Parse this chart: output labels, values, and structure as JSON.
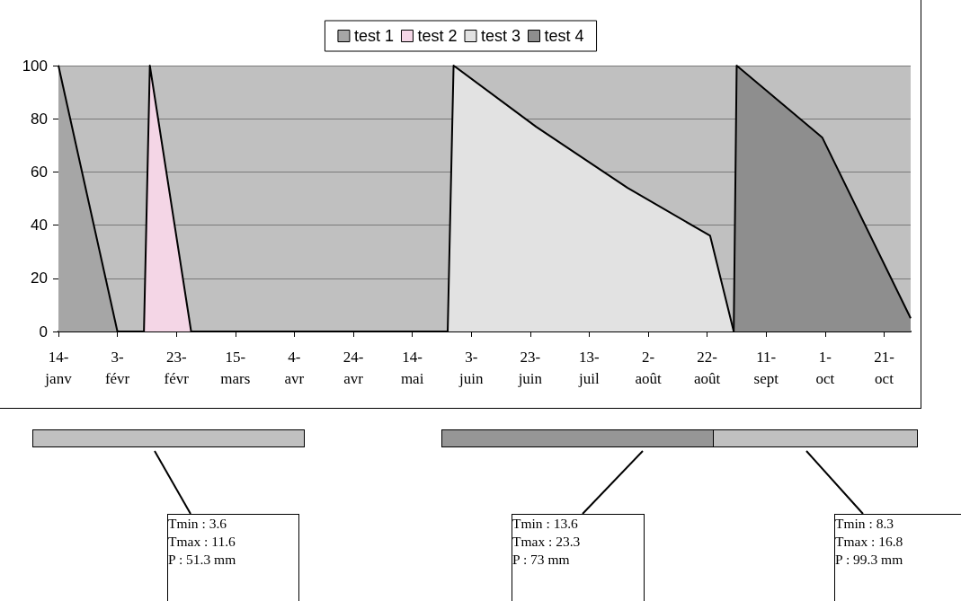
{
  "chart_data": {
    "type": "area",
    "series": [
      {
        "name": "test 1",
        "color": "#a6a6a6",
        "x": [
          "--01-14",
          "--02-03"
        ],
        "values": [
          100,
          0
        ]
      },
      {
        "name": "test 2",
        "color": "#f4d6e6",
        "x": [
          "--02-12",
          "--02-14",
          "--02-28"
        ],
        "values": [
          0,
          100,
          0
        ]
      },
      {
        "name": "test 3",
        "color": "#e2e2e2",
        "x": [
          "--05-26",
          "--05-28",
          "--06-25",
          "--07-26",
          "--08-23",
          "--08-31"
        ],
        "values": [
          0,
          100,
          77,
          54,
          36,
          0
        ]
      },
      {
        "name": "test 4",
        "color": "#8e8e8e",
        "x": [
          "--08-31",
          "--09-01",
          "--09-30",
          "--10-30"
        ],
        "values": [
          0,
          100,
          73,
          5
        ]
      }
    ],
    "xlim": [
      "--01-14",
      "--10-30"
    ],
    "xticks": [
      {
        "value": "--01-14",
        "label": "14-janv"
      },
      {
        "value": "--02-03",
        "label": "3-févr"
      },
      {
        "value": "--02-23",
        "label": "23-févr"
      },
      {
        "value": "--03-15",
        "label": "15-mars"
      },
      {
        "value": "--04-04",
        "label": "4-avr"
      },
      {
        "value": "--04-24",
        "label": "24-avr"
      },
      {
        "value": "--05-14",
        "label": "14-mai"
      },
      {
        "value": "--06-03",
        "label": "3-juin"
      },
      {
        "value": "--06-23",
        "label": "23-juin"
      },
      {
        "value": "--07-13",
        "label": "13-juil"
      },
      {
        "value": "--08-02",
        "label": "2-août"
      },
      {
        "value": "--08-22",
        "label": "22-août"
      },
      {
        "value": "--09-11",
        "label": "11-sept"
      },
      {
        "value": "--10-01",
        "label": "1-oct"
      },
      {
        "value": "--10-21",
        "label": "21-oct"
      }
    ],
    "ylim": [
      0,
      100
    ],
    "yticks": [
      0,
      20,
      40,
      60,
      80,
      100
    ],
    "grid": "y",
    "legend": "top",
    "marker": "none",
    "line_style": "solid",
    "annotations": [
      "Tmin : 3.6\nTmax : 11.6\nP : 51.3 mm",
      "Tmin : 13.6\nTmax : 23.3\nP : 73 mm",
      "Tmin : 8.3\nTmax : 16.8\nP : 99.3 mm"
    ]
  }
}
